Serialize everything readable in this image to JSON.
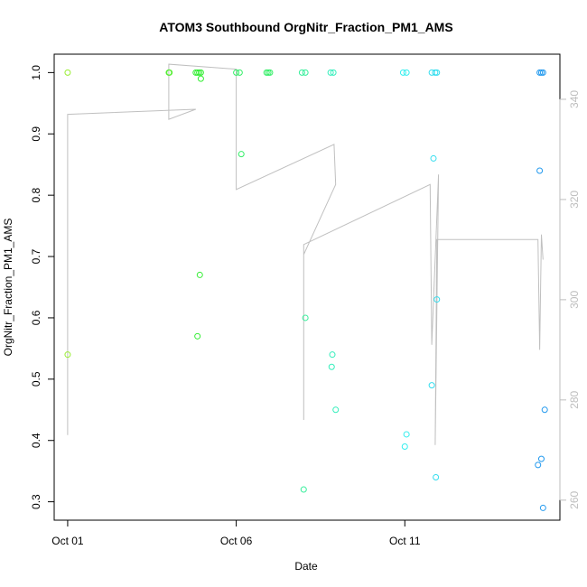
{
  "chart_data": {
    "type": "scatter",
    "title": "ATOM3 Southbound OrgNitr_Fraction_PM1_AMS",
    "xlabel": "Date",
    "ylabel": "OrgNitr_Fraction_PM1_AMS",
    "x_unit": "days since Oct 01",
    "xlim": [
      -0.4,
      14.6
    ],
    "ylim": [
      0.27,
      1.03
    ],
    "y2lim": [
      256,
      349
    ],
    "x_ticks": [
      {
        "value": 0,
        "label": "Oct 01"
      },
      {
        "value": 5,
        "label": "Oct 06"
      },
      {
        "value": 10,
        "label": "Oct 11"
      }
    ],
    "y_ticks": [
      {
        "value": 0.3,
        "label": "0.3"
      },
      {
        "value": 0.4,
        "label": "0.4"
      },
      {
        "value": 0.5,
        "label": "0.5"
      },
      {
        "value": 0.6,
        "label": "0.6"
      },
      {
        "value": 0.7,
        "label": "0.7"
      },
      {
        "value": 0.8,
        "label": "0.8"
      },
      {
        "value": 0.9,
        "label": "0.9"
      },
      {
        "value": 1.0,
        "label": "1.0"
      }
    ],
    "y2_ticks": [
      {
        "value": 260,
        "label": "260"
      },
      {
        "value": 280,
        "label": "280"
      },
      {
        "value": 300,
        "label": "300"
      },
      {
        "value": 320,
        "label": "320"
      },
      {
        "value": 340,
        "label": "340"
      }
    ],
    "grid": false,
    "points": [
      {
        "x": 0.0,
        "y": 1.0,
        "color": "#99ee33"
      },
      {
        "x": 0.0,
        "y": 0.54,
        "color": "#99ee33"
      },
      {
        "x": 3.0,
        "y": 1.0,
        "color": "#55ee33"
      },
      {
        "x": 3.02,
        "y": 1.0,
        "color": "#55ee33"
      },
      {
        "x": 3.8,
        "y": 1.0,
        "color": "#33ee33"
      },
      {
        "x": 3.85,
        "y": 1.0,
        "color": "#33ee33"
      },
      {
        "x": 3.9,
        "y": 1.0,
        "color": "#33ee33"
      },
      {
        "x": 3.95,
        "y": 1.0,
        "color": "#33ee33"
      },
      {
        "x": 3.85,
        "y": 0.57,
        "color": "#33ee33"
      },
      {
        "x": 3.92,
        "y": 0.67,
        "color": "#33ee33"
      },
      {
        "x": 3.95,
        "y": 0.99,
        "color": "#33ee33"
      },
      {
        "x": 5.0,
        "y": 1.0,
        "color": "#33ee66"
      },
      {
        "x": 5.1,
        "y": 1.0,
        "color": "#33ee66"
      },
      {
        "x": 5.15,
        "y": 0.867,
        "color": "#33ee66"
      },
      {
        "x": 5.9,
        "y": 1.0,
        "color": "#33ee66"
      },
      {
        "x": 5.95,
        "y": 1.0,
        "color": "#33ee66"
      },
      {
        "x": 6.0,
        "y": 1.0,
        "color": "#33ee66"
      },
      {
        "x": 6.95,
        "y": 1.0,
        "color": "#33ee99"
      },
      {
        "x": 7.05,
        "y": 1.0,
        "color": "#33ee99"
      },
      {
        "x": 7.0,
        "y": 0.32,
        "color": "#33ee99"
      },
      {
        "x": 7.05,
        "y": 0.6,
        "color": "#33ee99"
      },
      {
        "x": 7.8,
        "y": 1.0,
        "color": "#33eebb"
      },
      {
        "x": 7.88,
        "y": 1.0,
        "color": "#33eebb"
      },
      {
        "x": 7.85,
        "y": 0.54,
        "color": "#33eebb"
      },
      {
        "x": 7.83,
        "y": 0.52,
        "color": "#33eebb"
      },
      {
        "x": 7.95,
        "y": 0.45,
        "color": "#33eebb"
      },
      {
        "x": 9.95,
        "y": 1.0,
        "color": "#33eeee"
      },
      {
        "x": 10.05,
        "y": 1.0,
        "color": "#33eeee"
      },
      {
        "x": 10.05,
        "y": 0.41,
        "color": "#33eeee"
      },
      {
        "x": 10.0,
        "y": 0.39,
        "color": "#33eeee"
      },
      {
        "x": 10.8,
        "y": 1.0,
        "color": "#33ddee"
      },
      {
        "x": 10.9,
        "y": 1.0,
        "color": "#33ddee"
      },
      {
        "x": 10.95,
        "y": 1.0,
        "color": "#33ddee"
      },
      {
        "x": 10.85,
        "y": 0.86,
        "color": "#33ddee"
      },
      {
        "x": 10.8,
        "y": 0.49,
        "color": "#33ddee"
      },
      {
        "x": 10.95,
        "y": 0.63,
        "color": "#33ddee"
      },
      {
        "x": 10.92,
        "y": 0.34,
        "color": "#33ddee"
      },
      {
        "x": 14.0,
        "y": 1.0,
        "color": "#2299ee"
      },
      {
        "x": 14.05,
        "y": 1.0,
        "color": "#2299ee"
      },
      {
        "x": 14.1,
        "y": 1.0,
        "color": "#2299ee"
      },
      {
        "x": 14.0,
        "y": 0.84,
        "color": "#2299ee"
      },
      {
        "x": 14.05,
        "y": 0.37,
        "color": "#2299ee"
      },
      {
        "x": 13.95,
        "y": 0.36,
        "color": "#2299ee"
      },
      {
        "x": 14.15,
        "y": 0.45,
        "color": "#2299ee"
      },
      {
        "x": 14.1,
        "y": 0.29,
        "color": "#2299ee"
      }
    ],
    "secondary_series": {
      "axis": "right",
      "color": "#c0c0c0",
      "points": [
        {
          "x": 0.0,
          "y": 273
        },
        {
          "x": 0.0,
          "y": 337
        },
        {
          "x": 3.8,
          "y": 338
        },
        {
          "x": 3.0,
          "y": 336
        },
        {
          "x": 3.0,
          "y": 347
        },
        {
          "x": 5.0,
          "y": 346
        },
        {
          "x": 5.0,
          "y": 322
        },
        {
          "x": 7.9,
          "y": 331
        },
        {
          "x": 7.95,
          "y": 323
        },
        {
          "x": 7.0,
          "y": 309
        },
        {
          "x": 7.0,
          "y": 276
        },
        {
          "x": 7.0,
          "y": 311
        },
        {
          "x": 10.75,
          "y": 323
        },
        {
          "x": 10.8,
          "y": 291
        },
        {
          "x": 11.0,
          "y": 325
        },
        {
          "x": 10.9,
          "y": 271
        },
        {
          "x": 10.95,
          "y": 312
        },
        {
          "x": 13.95,
          "y": 312
        },
        {
          "x": 14.0,
          "y": 290
        },
        {
          "x": 14.05,
          "y": 313
        },
        {
          "x": 14.1,
          "y": 308
        }
      ]
    }
  }
}
